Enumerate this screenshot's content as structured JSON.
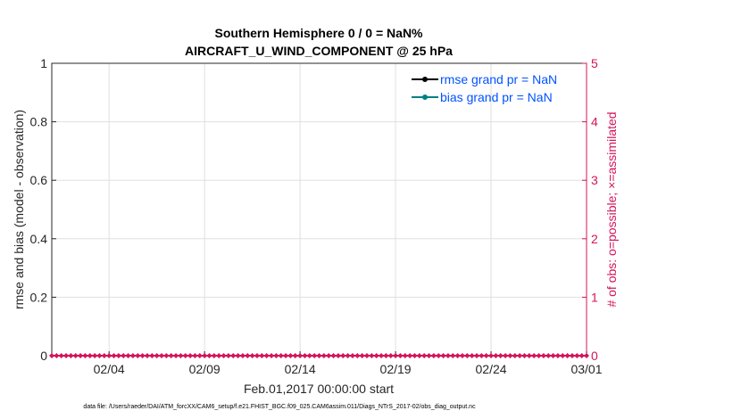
{
  "chart_data": {
    "type": "line",
    "title": [
      "Southern Hemisphere 0 / 0 = NaN%",
      "AIRCRAFT_U_WIND_COMPONENT @ 25 hPa"
    ],
    "xlabel": "Feb.01,2017 00:00:00 start",
    "ylabel": "rmse and bias (model - observation)",
    "y2label": "# of obs: o=possible; ×=assimilated",
    "x_range": [
      "2017-02-01",
      "2017-03-01"
    ],
    "x_ticks": [
      "02/04",
      "02/09",
      "02/14",
      "02/19",
      "02/24",
      "03/01"
    ],
    "x_tick_days": [
      3,
      8,
      13,
      18,
      23,
      28
    ],
    "ylim": [
      0,
      1
    ],
    "y_ticks": [
      "0",
      "0.2",
      "0.4",
      "0.6",
      "0.8",
      "1"
    ],
    "y2lim": [
      0,
      5
    ],
    "y2_ticks": [
      "0",
      "1",
      "2",
      "3",
      "4",
      "5"
    ],
    "grid": true,
    "legend_position": "top-right",
    "series": [
      {
        "name": "rmse grand pr = NaN",
        "color": "#000000",
        "values": []
      },
      {
        "name": "bias grand pr = NaN",
        "color": "#008080",
        "values": []
      },
      {
        "name": "obs count",
        "color": "#d4145a",
        "axis": "right",
        "interval_hours": 6,
        "constant_value": 0
      }
    ]
  },
  "footer": "data file: /Users/raeder/DAI/ATM_forcXX/CAM6_setup/f.e21.FHIST_BGC.f09_025.CAM6assim.011/Diags_NTrS_2017-02/obs_diag_output.nc"
}
